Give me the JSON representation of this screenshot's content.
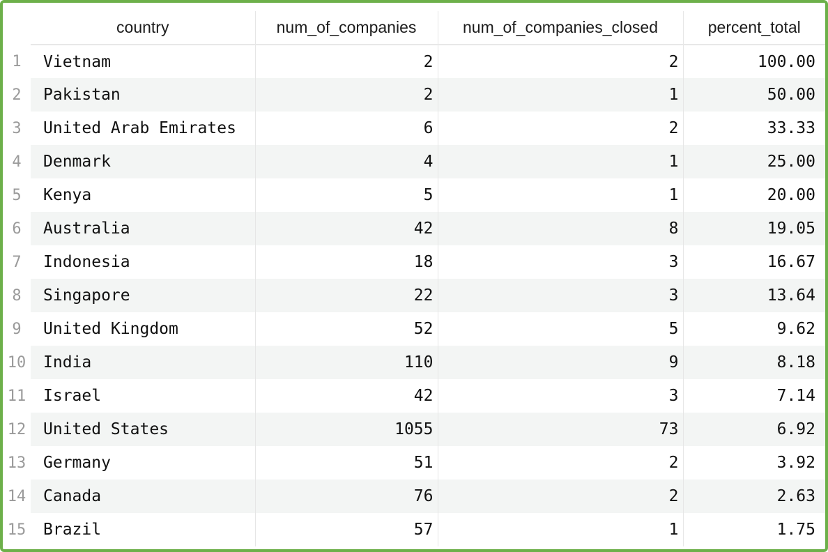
{
  "columns": [
    "country",
    "num_of_companies",
    "num_of_companies_closed",
    "percent_total"
  ],
  "rows": [
    {
      "idx": "1",
      "country": "Vietnam",
      "num_of_companies": "2",
      "num_of_companies_closed": "2",
      "percent_total": "100.00"
    },
    {
      "idx": "2",
      "country": "Pakistan",
      "num_of_companies": "2",
      "num_of_companies_closed": "1",
      "percent_total": "50.00"
    },
    {
      "idx": "3",
      "country": "United Arab Emirates",
      "num_of_companies": "6",
      "num_of_companies_closed": "2",
      "percent_total": "33.33"
    },
    {
      "idx": "4",
      "country": "Denmark",
      "num_of_companies": "4",
      "num_of_companies_closed": "1",
      "percent_total": "25.00"
    },
    {
      "idx": "5",
      "country": "Kenya",
      "num_of_companies": "5",
      "num_of_companies_closed": "1",
      "percent_total": "20.00"
    },
    {
      "idx": "6",
      "country": "Australia",
      "num_of_companies": "42",
      "num_of_companies_closed": "8",
      "percent_total": "19.05"
    },
    {
      "idx": "7",
      "country": "Indonesia",
      "num_of_companies": "18",
      "num_of_companies_closed": "3",
      "percent_total": "16.67"
    },
    {
      "idx": "8",
      "country": "Singapore",
      "num_of_companies": "22",
      "num_of_companies_closed": "3",
      "percent_total": "13.64"
    },
    {
      "idx": "9",
      "country": "United Kingdom",
      "num_of_companies": "52",
      "num_of_companies_closed": "5",
      "percent_total": "9.62"
    },
    {
      "idx": "10",
      "country": "India",
      "num_of_companies": "110",
      "num_of_companies_closed": "9",
      "percent_total": "8.18"
    },
    {
      "idx": "11",
      "country": "Israel",
      "num_of_companies": "42",
      "num_of_companies_closed": "3",
      "percent_total": "7.14"
    },
    {
      "idx": "12",
      "country": "United States",
      "num_of_companies": "1055",
      "num_of_companies_closed": "73",
      "percent_total": "6.92"
    },
    {
      "idx": "13",
      "country": "Germany",
      "num_of_companies": "51",
      "num_of_companies_closed": "2",
      "percent_total": "3.92"
    },
    {
      "idx": "14",
      "country": "Canada",
      "num_of_companies": "76",
      "num_of_companies_closed": "2",
      "percent_total": "2.63"
    },
    {
      "idx": "15",
      "country": "Brazil",
      "num_of_companies": "57",
      "num_of_companies_closed": "1",
      "percent_total": "1.75"
    }
  ],
  "colors": {
    "frame_border": "#6db04a",
    "stripe": "#f3f5f4",
    "grid_line": "#e6e6e6",
    "row_index_text": "#9a9a9a"
  }
}
